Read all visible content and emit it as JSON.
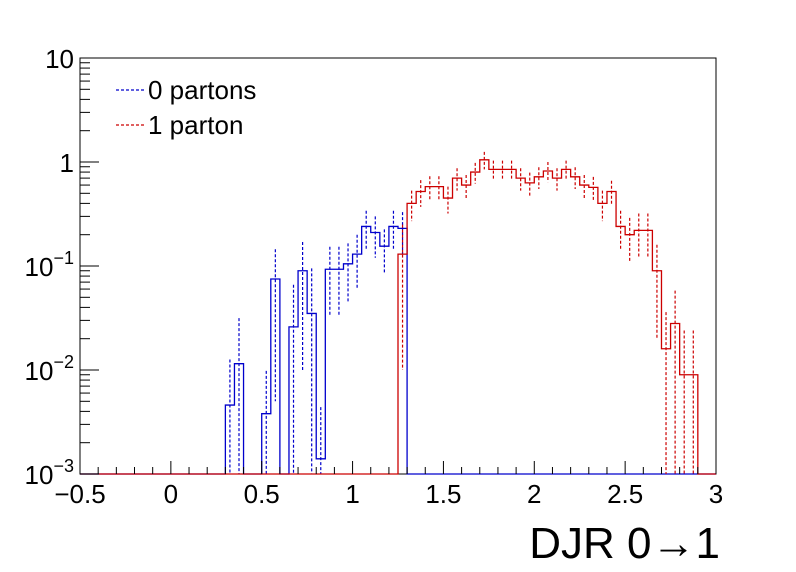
{
  "chart_data": {
    "type": "histogram",
    "xlabel": "DJR 0→1",
    "ylabel": "",
    "title": "",
    "xlim": [
      -0.5,
      3.0
    ],
    "ylim": [
      0.001,
      10
    ],
    "log_y": true,
    "grid": false,
    "legend_position": "top-left",
    "x_ticks": [
      {
        "value": -0.5,
        "label": "−0.5"
      },
      {
        "value": 0,
        "label": "0"
      },
      {
        "value": 0.5,
        "label": "0.5"
      },
      {
        "value": 1,
        "label": "1"
      },
      {
        "value": 1.5,
        "label": "1.5"
      },
      {
        "value": 2,
        "label": "2"
      },
      {
        "value": 2.5,
        "label": "2.5"
      },
      {
        "value": 3,
        "label": "3"
      }
    ],
    "y_ticks": [
      {
        "value": 0.001,
        "base": "10",
        "exp": "−3"
      },
      {
        "value": 0.01,
        "base": "10",
        "exp": "−2"
      },
      {
        "value": 0.1,
        "base": "10",
        "exp": "−1"
      },
      {
        "value": 1,
        "base": "1",
        "exp": ""
      },
      {
        "value": 10,
        "base": "10",
        "exp": ""
      }
    ],
    "bin_edges": [
      -0.5,
      -0.45,
      -0.4,
      -0.35,
      -0.3,
      -0.25,
      -0.2,
      -0.15,
      -0.1,
      -0.05,
      0.0,
      0.05,
      0.1,
      0.15,
      0.2,
      0.25,
      0.3,
      0.35,
      0.4,
      0.45,
      0.5,
      0.55,
      0.6,
      0.65,
      0.7,
      0.75,
      0.8,
      0.85,
      0.9,
      0.95,
      1.0,
      1.05,
      1.1,
      1.15,
      1.2,
      1.25,
      1.3,
      1.35,
      1.4,
      1.45,
      1.5,
      1.55,
      1.6,
      1.65,
      1.7,
      1.75,
      1.8,
      1.85,
      1.9,
      1.95,
      2.0,
      2.05,
      2.1,
      2.15,
      2.2,
      2.25,
      2.3,
      2.35,
      2.4,
      2.45,
      2.5,
      2.55,
      2.6,
      2.65,
      2.7,
      2.75,
      2.8,
      2.85,
      2.9,
      2.95,
      3.0
    ],
    "series": [
      {
        "name": "0 partons",
        "color": "#0000cc",
        "values": [
          0,
          0,
          0,
          0,
          0,
          0,
          0,
          0,
          0,
          0,
          0,
          0,
          0,
          0,
          0,
          0,
          0.0046,
          0.0115,
          0,
          0,
          0.0038,
          0.075,
          0,
          0.026,
          0.09,
          0.035,
          0.0014,
          0.093,
          0.093,
          0.105,
          0.13,
          0.24,
          0.21,
          0.155,
          0.24,
          0.23,
          0,
          0,
          0,
          0,
          0,
          0,
          0,
          0,
          0,
          0,
          0,
          0,
          0,
          0,
          0,
          0,
          0,
          0,
          0,
          0,
          0,
          0,
          0,
          0,
          0,
          0,
          0,
          0,
          0,
          0,
          0,
          0,
          0,
          0
        ],
        "errors": [
          0,
          0,
          0,
          0,
          0,
          0,
          0,
          0,
          0,
          0,
          0,
          0,
          0,
          0,
          0,
          0,
          0.008,
          0.02,
          0,
          0,
          0.006,
          0.07,
          0,
          0.04,
          0.08,
          0.06,
          0.003,
          0.06,
          0.06,
          0.06,
          0.07,
          0.1,
          0.09,
          0.07,
          0.1,
          0.1,
          0,
          0,
          0,
          0,
          0,
          0,
          0,
          0,
          0,
          0,
          0,
          0,
          0,
          0,
          0,
          0,
          0,
          0,
          0,
          0,
          0,
          0,
          0,
          0,
          0,
          0,
          0,
          0,
          0,
          0,
          0,
          0,
          0,
          0
        ]
      },
      {
        "name": "1 parton",
        "color": "#cc0000",
        "values": [
          0,
          0,
          0,
          0,
          0,
          0,
          0,
          0,
          0,
          0,
          0,
          0,
          0,
          0,
          0,
          0,
          0,
          0,
          0,
          0,
          0,
          0,
          0,
          0,
          0,
          0,
          0,
          0,
          0,
          0,
          0,
          0,
          0,
          0,
          0,
          0.13,
          0.4,
          0.52,
          0.58,
          0.58,
          0.45,
          0.7,
          0.6,
          0.8,
          1.05,
          0.85,
          0.85,
          0.85,
          0.7,
          0.63,
          0.72,
          0.82,
          0.7,
          0.85,
          0.72,
          0.6,
          0.57,
          0.4,
          0.52,
          0.24,
          0.2,
          0.22,
          0.22,
          0.09,
          0.016,
          0.028,
          0.009,
          0.009,
          0.0,
          0.0
        ],
        "errors": [
          0,
          0,
          0,
          0,
          0,
          0,
          0,
          0,
          0,
          0,
          0,
          0,
          0,
          0,
          0,
          0,
          0,
          0,
          0,
          0,
          0,
          0,
          0,
          0,
          0,
          0,
          0,
          0,
          0,
          0,
          0,
          0,
          0,
          0,
          0,
          0.12,
          0.13,
          0.15,
          0.15,
          0.15,
          0.13,
          0.17,
          0.15,
          0.18,
          0.2,
          0.18,
          0.18,
          0.18,
          0.17,
          0.16,
          0.17,
          0.18,
          0.17,
          0.18,
          0.17,
          0.15,
          0.15,
          0.13,
          0.14,
          0.1,
          0.09,
          0.1,
          0.1,
          0.07,
          0.02,
          0.03,
          0.015,
          0.015,
          0,
          0
        ]
      }
    ]
  }
}
